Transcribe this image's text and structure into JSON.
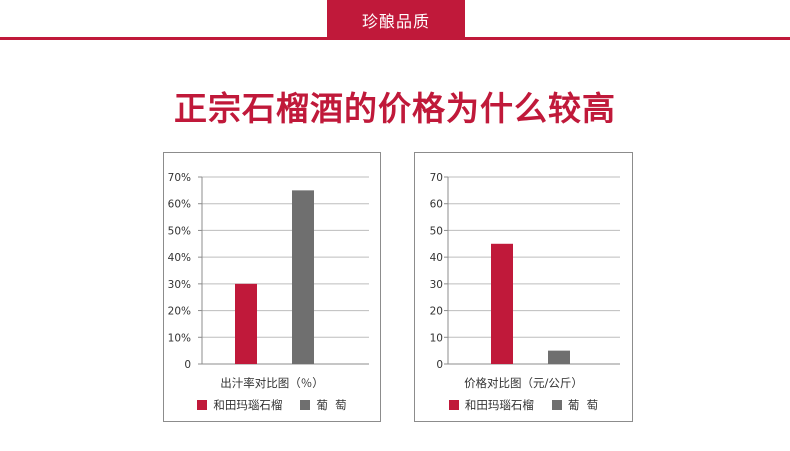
{
  "header": {
    "tab_label": "珍酿品质"
  },
  "page": {
    "title": "正宗石榴酒的价格为什么较高"
  },
  "colors": {
    "accent": "#c0193a",
    "pomegranate": "#c0193a",
    "grape": "#6f6f6f",
    "grid": "#bdbdbd"
  },
  "chart_data": [
    {
      "type": "bar",
      "xlabel": "出汁率对比图（％）",
      "y_ticks": [
        "0",
        "10%",
        "20%",
        "30%",
        "40%",
        "50%",
        "60%",
        "70%"
      ],
      "ylim": [
        0,
        70
      ],
      "grid": true,
      "series": [
        {
          "name": "和田玛瑙石榴",
          "value": 30,
          "color": "#c0193a"
        },
        {
          "name": "葡  萄",
          "value": 65,
          "color": "#6f6f6f"
        }
      ]
    },
    {
      "type": "bar",
      "xlabel": "价格对比图（元/公斤）",
      "y_ticks": [
        "0",
        "10",
        "20",
        "30",
        "40",
        "50",
        "60",
        "70"
      ],
      "ylim": [
        0,
        70
      ],
      "grid": true,
      "series": [
        {
          "name": "和田玛瑙石榴",
          "value": 45,
          "color": "#c0193a"
        },
        {
          "name": "葡  萄",
          "value": 5,
          "color": "#6f6f6f"
        }
      ]
    }
  ]
}
